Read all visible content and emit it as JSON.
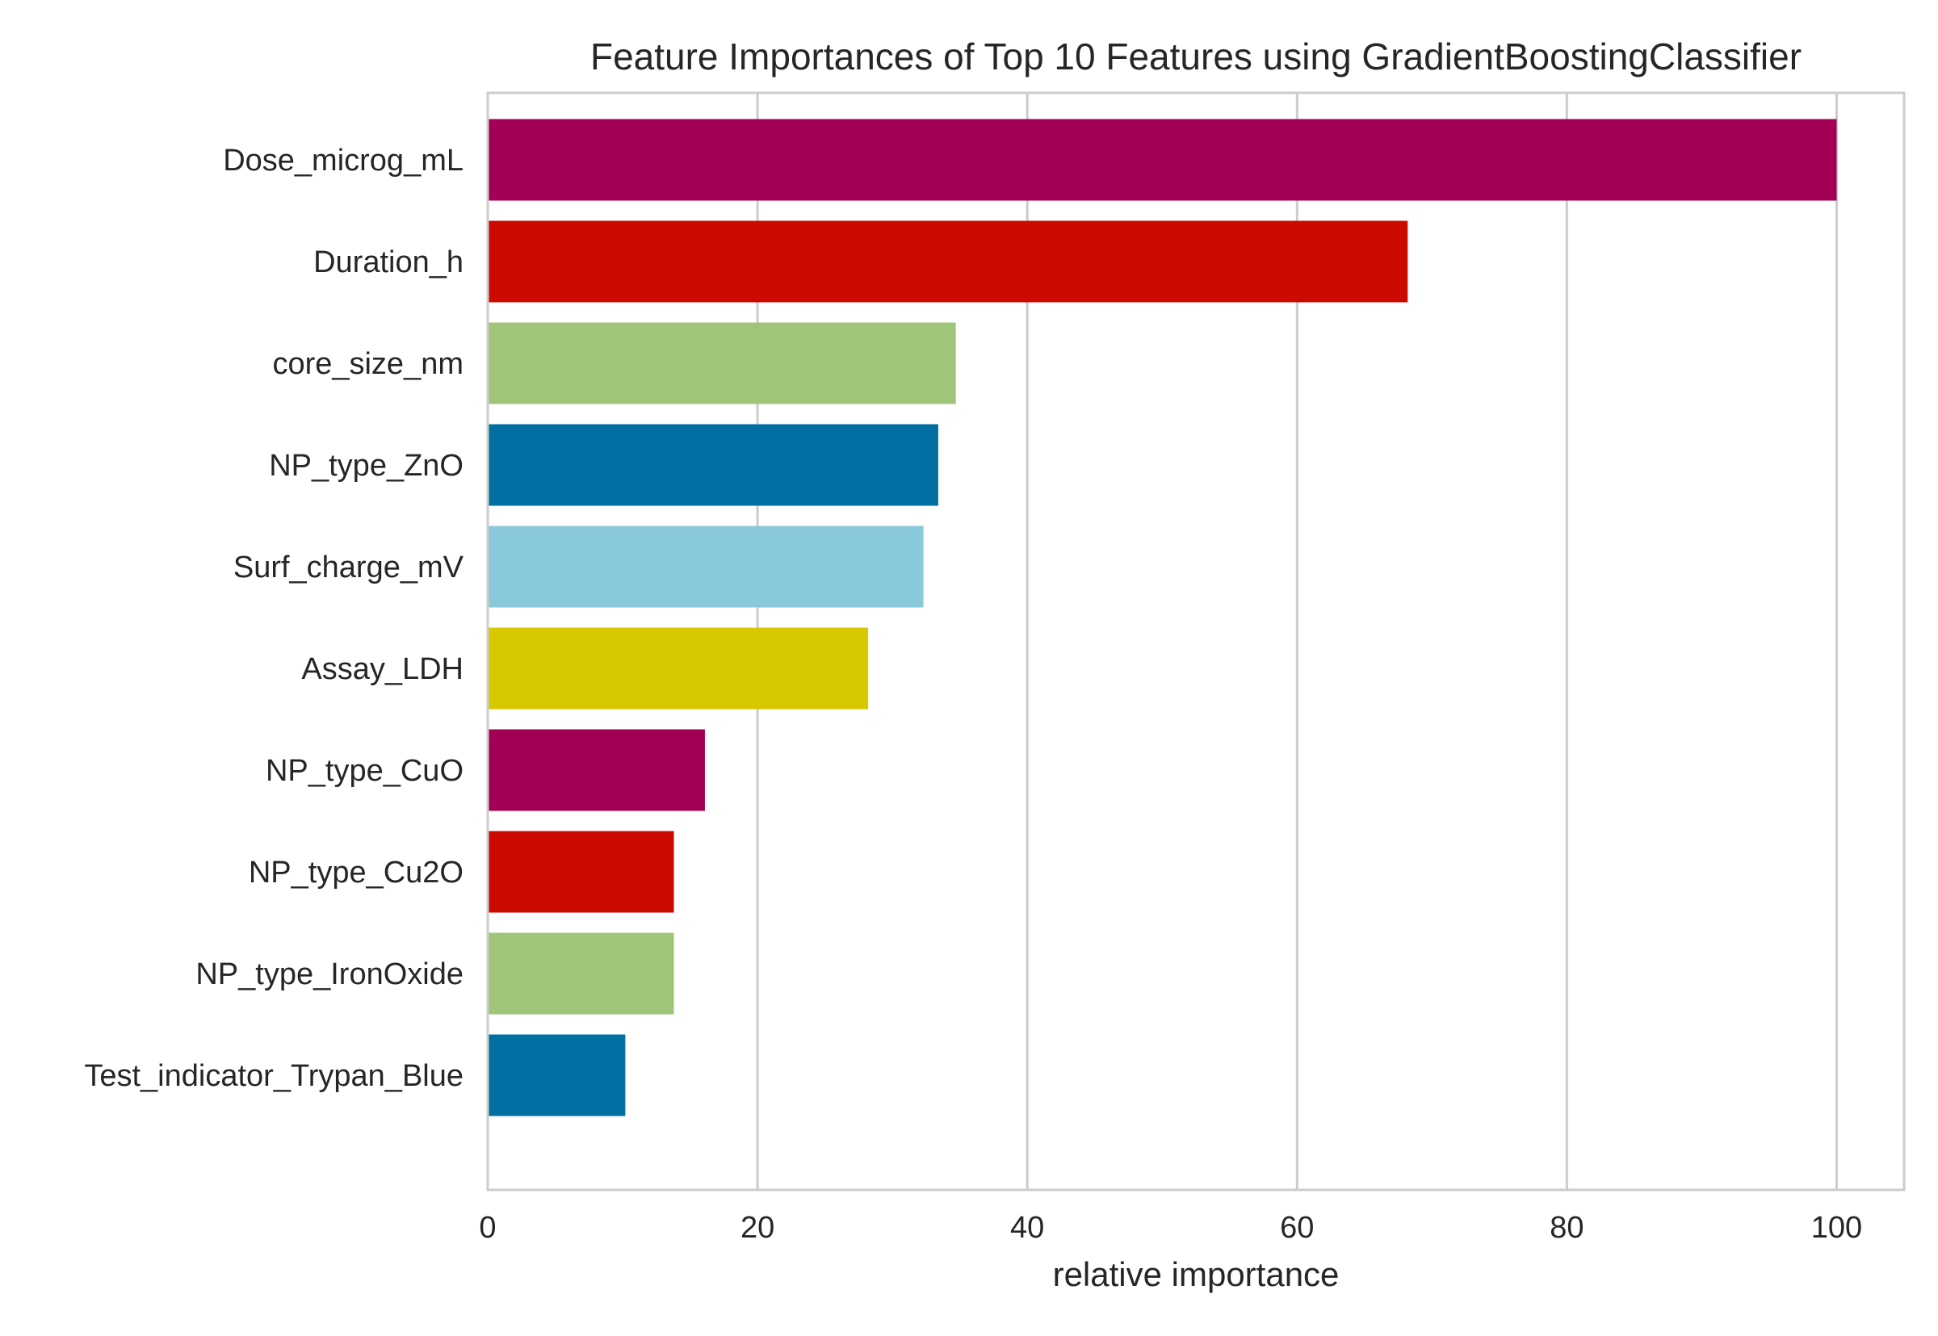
{
  "chart_data": {
    "type": "bar",
    "orientation": "horizontal",
    "title": "Feature Importances of Top 10 Features using GradientBoostingClassifier",
    "xlabel": "relative importance",
    "ylabel": "",
    "xlim": [
      0,
      105
    ],
    "xticks": [
      0,
      20,
      40,
      60,
      80,
      100
    ],
    "grid": true,
    "categories": [
      "Dose_microg_mL",
      "Duration_h",
      "core_size_nm",
      "NP_type_ZnO",
      "Surf_charge_mV",
      "Assay_LDH",
      "NP_type_CuO",
      "NP_type_Cu2O",
      "NP_type_IronOxide",
      "Test_indicator_Trypan_Blue"
    ],
    "values": [
      100,
      68.2,
      34.7,
      33.4,
      32.3,
      28.2,
      16.1,
      13.8,
      13.8,
      10.2
    ],
    "colors": [
      "#a30055",
      "#cc0a00",
      "#9fc47a",
      "#0070a3",
      "#8ac9da",
      "#d8c800",
      "#a30055",
      "#cc0a00",
      "#9fc47a",
      "#0070a3"
    ]
  }
}
